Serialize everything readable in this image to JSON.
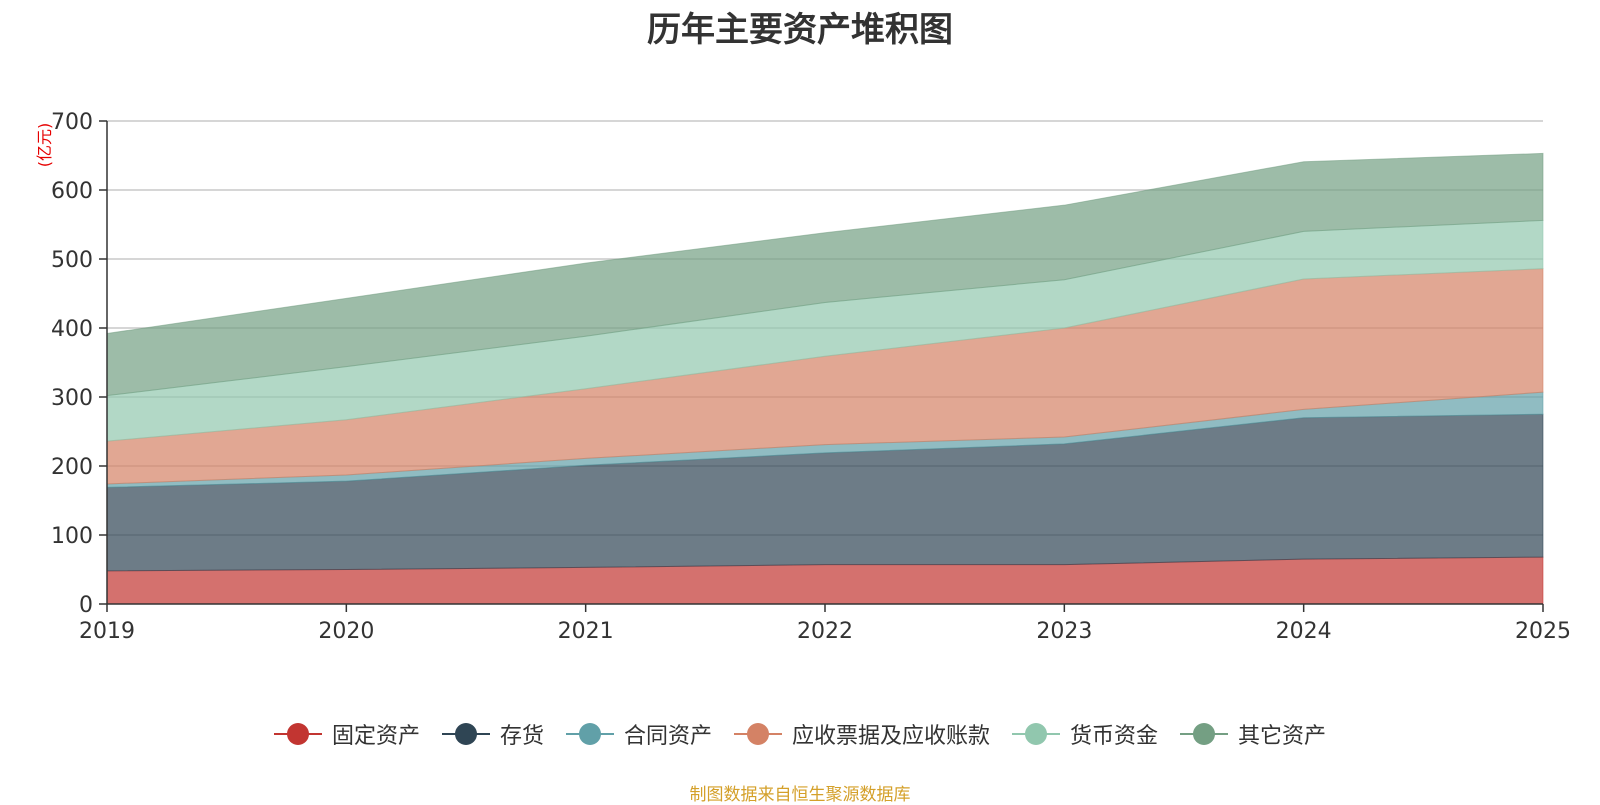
{
  "chart_data": {
    "type": "area",
    "stacked": true,
    "title": "历年主要资产堆积图",
    "unit_label": "(亿元)",
    "categories": [
      "2019",
      "2020",
      "2021",
      "2022",
      "2023",
      "2024",
      "2025"
    ],
    "ylim": [
      0,
      700
    ],
    "yticks": [
      0,
      100,
      200,
      300,
      400,
      500,
      600,
      700
    ],
    "grid": true,
    "legend_position": "bottom",
    "series": [
      {
        "name": "固定资产",
        "color": "#c23531",
        "values": [
          48,
          50,
          53,
          57,
          57,
          65,
          68
        ]
      },
      {
        "name": "存货",
        "color": "#2f4554",
        "values": [
          121,
          128,
          148,
          162,
          175,
          205,
          207
        ]
      },
      {
        "name": "合同资产",
        "color": "#61a0a8",
        "values": [
          5,
          9,
          10,
          12,
          10,
          12,
          32
        ]
      },
      {
        "name": "应收票据及应收账款",
        "color": "#d48265",
        "values": [
          62,
          80,
          101,
          128,
          158,
          189,
          179
        ]
      },
      {
        "name": "货币资金",
        "color": "#91c7ae",
        "values": [
          66,
          77,
          76,
          78,
          70,
          69,
          70
        ]
      },
      {
        "name": "其它资产",
        "color": "#749f83",
        "values": [
          90,
          99,
          106,
          101,
          108,
          101,
          97
        ]
      }
    ]
  },
  "source_note": "制图数据来自恒生聚源数据库"
}
